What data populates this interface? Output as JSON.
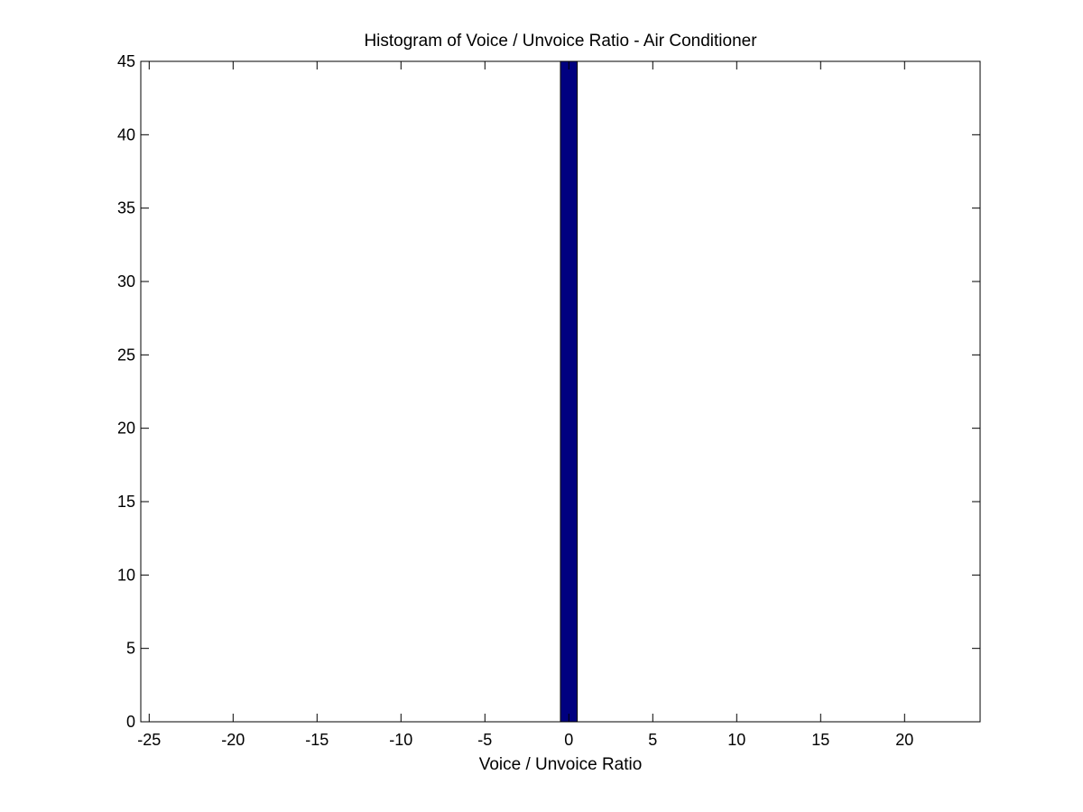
{
  "chart_data": {
    "type": "bar",
    "title": "Histogram of Voice / Unvoice Ratio - Air Conditioner",
    "xlabel": "Voice / Unvoice Ratio",
    "ylabel": "",
    "xlim": [
      -25.5,
      24.5
    ],
    "ylim": [
      0,
      45
    ],
    "xticks": [
      -25,
      -20,
      -15,
      -10,
      -5,
      0,
      5,
      10,
      15,
      20
    ],
    "xtick_labels": [
      "-25",
      "-20",
      "-15",
      "-10",
      "-5",
      "0",
      "5",
      "10",
      "15",
      "20"
    ],
    "yticks": [
      0,
      5,
      10,
      15,
      20,
      25,
      30,
      35,
      40,
      45
    ],
    "ytick_labels": [
      "0",
      "5",
      "10",
      "15",
      "20",
      "25",
      "30",
      "35",
      "40",
      "45"
    ],
    "bins": [
      {
        "x_start": -0.5,
        "x_end": 0.5,
        "count": 45
      }
    ],
    "grid": false,
    "legend": "none",
    "colors": {
      "bar_fill": "#000080",
      "bar_edge": "#000000",
      "axes": "#000000",
      "background": "#ffffff"
    }
  }
}
